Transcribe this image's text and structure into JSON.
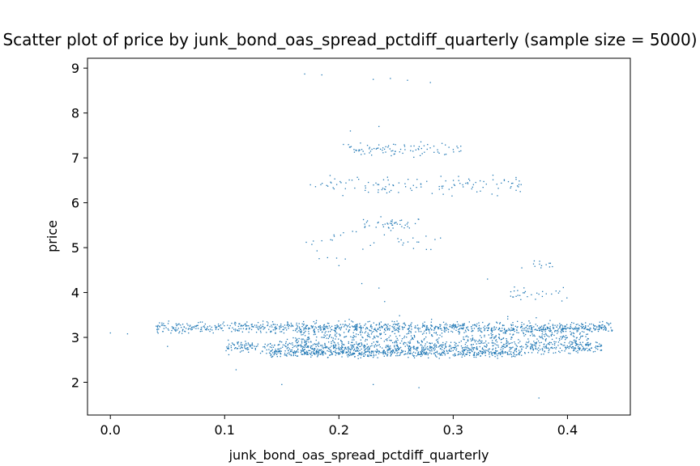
{
  "chart_data": {
    "type": "scatter",
    "title": "Scatter plot of price by junk_bond_oas_spread_pctdiff_quarterly (sample size = 5000)",
    "xlabel": "junk_bond_oas_spread_pctdiff_quarterly",
    "ylabel": "price",
    "xlim": [
      -0.02,
      0.455
    ],
    "ylim": [
      1.27,
      9.22
    ],
    "xticks": [
      0.0,
      0.1,
      0.2,
      0.3,
      0.4
    ],
    "xtick_labels": [
      "0.0",
      "0.1",
      "0.2",
      "0.3",
      "0.4"
    ],
    "yticks": [
      2,
      3,
      4,
      5,
      6,
      7,
      8,
      9
    ],
    "ytick_labels": [
      "2",
      "3",
      "4",
      "5",
      "6",
      "7",
      "8",
      "9"
    ],
    "grid": false,
    "marker_color": "#1f77b4",
    "sample_size": 5000,
    "clusters": [
      {
        "x_range": [
          0.04,
          0.44
        ],
        "y_center": 3.22,
        "y_spread": 0.1,
        "density": 900
      },
      {
        "x_range": [
          0.1,
          0.43
        ],
        "y_center": 2.78,
        "y_spread": 0.12,
        "density": 700
      },
      {
        "x_range": [
          0.14,
          0.36
        ],
        "y_center": 2.65,
        "y_spread": 0.08,
        "density": 500
      },
      {
        "x_range": [
          0.16,
          0.42
        ],
        "y_center": 3.0,
        "y_spread": 0.28,
        "density": 600
      },
      {
        "x_range": [
          0.17,
          0.36
        ],
        "y_center": 6.4,
        "y_spread": 0.18,
        "density": 120
      },
      {
        "x_range": [
          0.2,
          0.31
        ],
        "y_center": 7.2,
        "y_spread": 0.12,
        "density": 90
      },
      {
        "x_range": [
          0.22,
          0.27
        ],
        "y_center": 5.55,
        "y_spread": 0.12,
        "density": 40
      },
      {
        "x_range": [
          0.17,
          0.3
        ],
        "y_center": 5.1,
        "y_spread": 0.35,
        "density": 40
      },
      {
        "x_range": [
          0.35,
          0.4
        ],
        "y_center": 3.95,
        "y_spread": 0.18,
        "density": 30
      },
      {
        "x_range": [
          0.37,
          0.39
        ],
        "y_center": 4.65,
        "y_spread": 0.1,
        "density": 12
      }
    ],
    "points": [
      [
        0.0,
        3.1
      ],
      [
        0.015,
        3.08
      ],
      [
        0.05,
        2.8
      ],
      [
        0.06,
        3.1
      ],
      [
        0.09,
        3.1
      ],
      [
        0.11,
        2.28
      ],
      [
        0.15,
        1.95
      ],
      [
        0.23,
        1.95
      ],
      [
        0.27,
        1.88
      ],
      [
        0.375,
        1.65
      ],
      [
        0.17,
        8.87
      ],
      [
        0.185,
        8.85
      ],
      [
        0.23,
        8.75
      ],
      [
        0.245,
        8.77
      ],
      [
        0.26,
        8.73
      ],
      [
        0.28,
        8.68
      ],
      [
        0.235,
        7.7
      ],
      [
        0.21,
        7.6
      ],
      [
        0.2,
        4.6
      ],
      [
        0.22,
        4.2
      ],
      [
        0.235,
        4.1
      ],
      [
        0.24,
        3.8
      ],
      [
        0.33,
        4.3
      ],
      [
        0.36,
        4.55
      ]
    ]
  }
}
